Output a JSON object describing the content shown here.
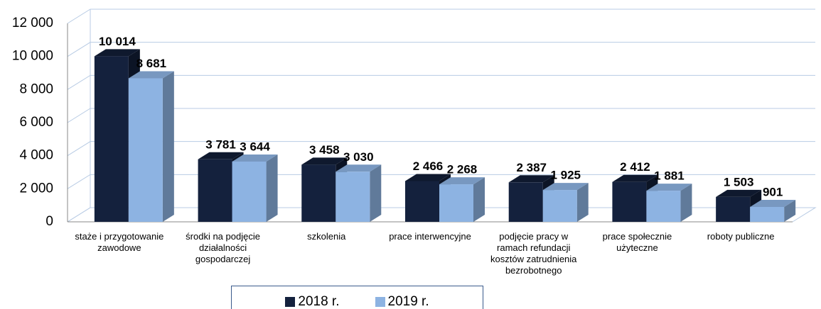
{
  "chart_data": {
    "type": "bar3d",
    "categories": [
      "staże i przygotowanie zawodowe",
      "środki na podjęcie działalności gospodarczej",
      "szkolenia",
      "prace interwencyjne",
      "podjęcie pracy w ramach refundacji kosztów zatrudnienia bezrobotnego",
      "prace społecznie użyteczne",
      "roboty publiczne"
    ],
    "series": [
      {
        "name": "2018 r.",
        "color": "#14213d",
        "values": [
          10014,
          3781,
          3458,
          2466,
          2387,
          2412,
          1503
        ],
        "value_labels": [
          "10 014",
          "3 781",
          "3 458",
          "2 466",
          "2 387",
          "2 412",
          "1 503"
        ]
      },
      {
        "name": "2019 r.",
        "color": "#8db3e2",
        "values": [
          8681,
          3644,
          3030,
          2268,
          1925,
          1881,
          901
        ],
        "value_labels": [
          "8 681",
          "3 644",
          "3 030",
          "2 268",
          "1 925",
          "1 881",
          "901"
        ]
      }
    ],
    "ylim": [
      0,
      12000
    ],
    "yticks": [
      0,
      {
        "value": 2000,
        "label": "2 000"
      },
      {
        "value": 4000,
        "label": "4 000"
      },
      {
        "value": 6000,
        "label": "6 000"
      },
      {
        "value": 8000,
        "label": "8 000"
      },
      {
        "value": 10000,
        "label": "10 000"
      },
      {
        "value": 12000,
        "label": "12 000"
      }
    ],
    "grid": true
  }
}
